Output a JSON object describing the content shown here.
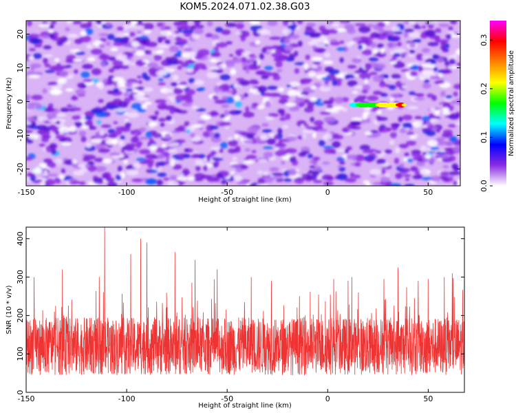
{
  "title": "KOM5.2024.071.02.38.G03",
  "chart_data": [
    {
      "type": "heatmap",
      "xlabel": "Height of straight line (km)",
      "ylabel": "Frequency (Hz)",
      "xlim": [
        -150,
        66
      ],
      "ylim": [
        -25,
        24
      ],
      "xticks": [
        -150,
        -100,
        -50,
        0,
        50
      ],
      "yticks": [
        -20,
        -10,
        0,
        10,
        20
      ],
      "grid": false,
      "background_level": 0.08,
      "signal_track": {
        "x": [
          12,
          15,
          20,
          25,
          30,
          35,
          38
        ],
        "y": [
          -1,
          -1,
          -1,
          -1,
          -1,
          -1,
          -1
        ],
        "amplitude": [
          0.12,
          0.15,
          0.18,
          0.2,
          0.22,
          0.3,
          0.2
        ]
      },
      "colorbar": {
        "label": "Normalized spectral amplitude",
        "range": [
          0,
          0.34
        ],
        "ticks": [
          0.0,
          0.1,
          0.2,
          0.3
        ],
        "colors": [
          "#ffffff",
          "#8a2be2",
          "#0000ff",
          "#00ffff",
          "#00ff00",
          "#ffff00",
          "#ff8000",
          "#ff0000",
          "#ff00ff"
        ]
      }
    },
    {
      "type": "line",
      "xlabel": "Height of straight line (km)",
      "ylabel": "SNR (10 * v/v)",
      "xlim": [
        -150,
        68
      ],
      "ylim": [
        0,
        430
      ],
      "xticks": [
        -150,
        -100,
        -50,
        0,
        50
      ],
      "yticks": [
        0,
        100,
        200,
        300,
        400
      ],
      "grid": false,
      "color": "#ee3333",
      "baseline": 120,
      "spikes": [
        {
          "x": -146,
          "y": 300
        },
        {
          "x": -132,
          "y": 320
        },
        {
          "x": -111,
          "y": 430
        },
        {
          "x": -98,
          "y": 360
        },
        {
          "x": -93,
          "y": 400
        },
        {
          "x": -90,
          "y": 390
        },
        {
          "x": -76,
          "y": 365
        },
        {
          "x": -66,
          "y": 345
        },
        {
          "x": -55,
          "y": 320
        },
        {
          "x": -38,
          "y": 300
        },
        {
          "x": -28,
          "y": 290
        },
        {
          "x": 3,
          "y": 295
        },
        {
          "x": 12,
          "y": 300
        },
        {
          "x": 28,
          "y": 295
        },
        {
          "x": 35,
          "y": 325
        },
        {
          "x": 45,
          "y": 290
        },
        {
          "x": 50,
          "y": 295
        },
        {
          "x": 58,
          "y": 300
        },
        {
          "x": 62,
          "y": 310
        }
      ]
    }
  ]
}
